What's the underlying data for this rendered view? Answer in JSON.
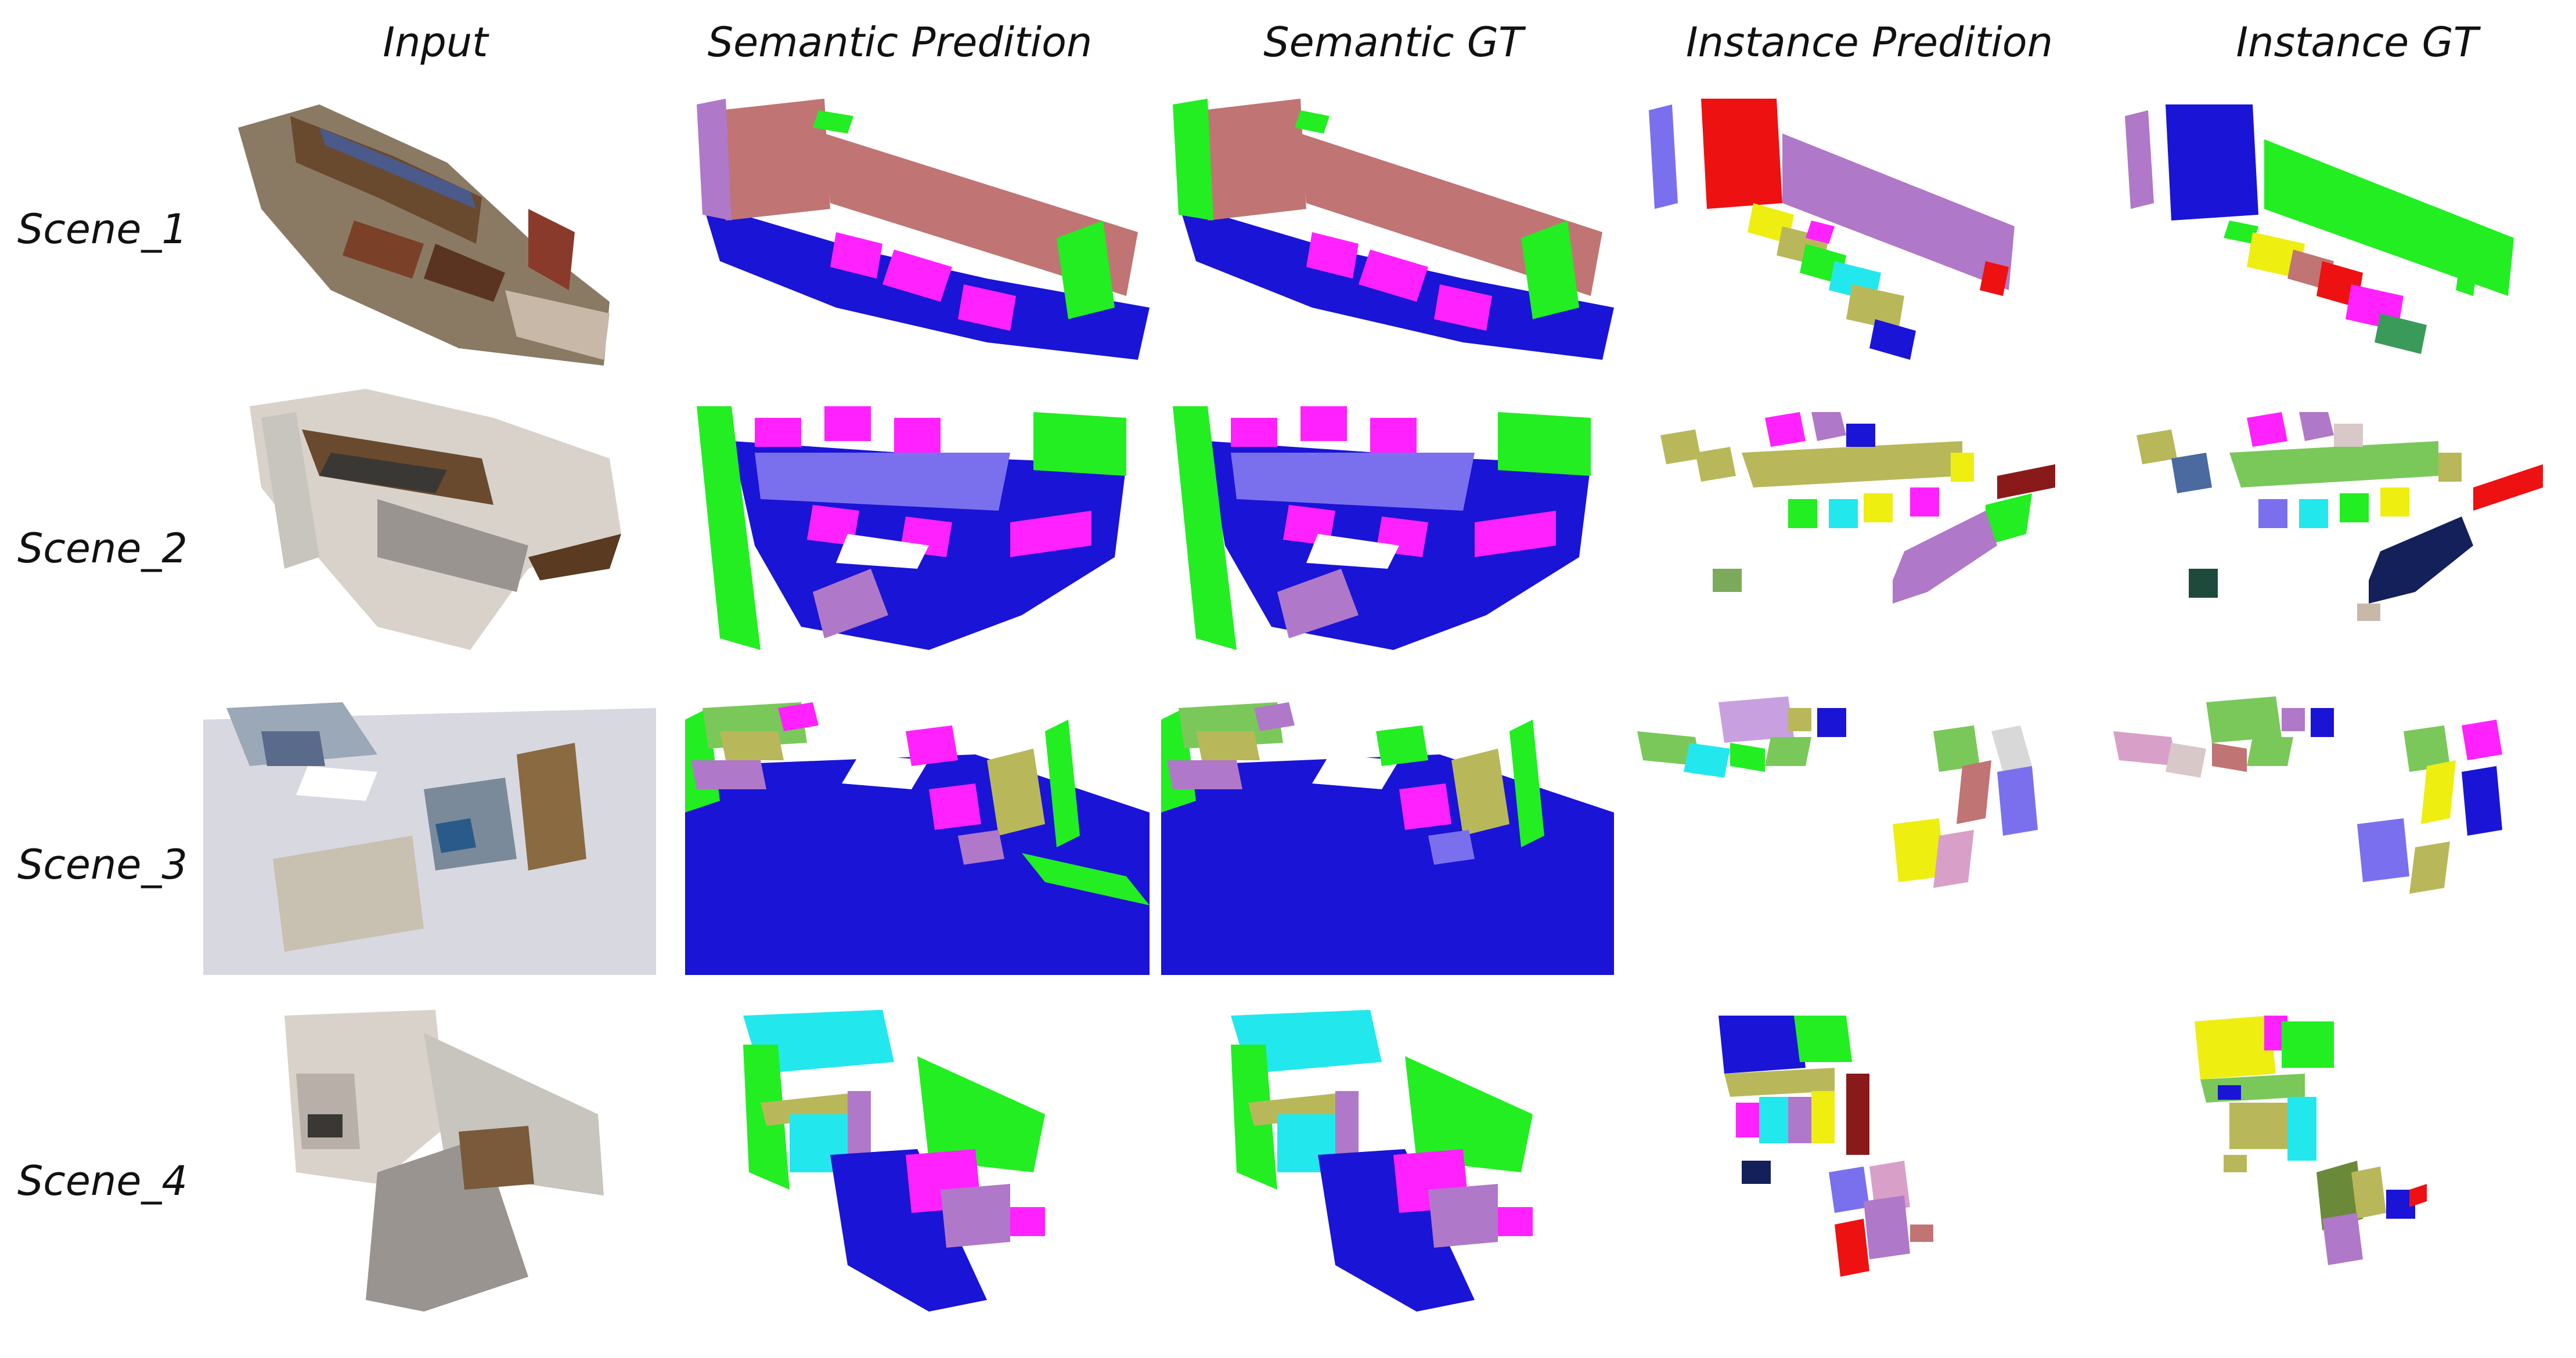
{
  "columns": [
    {
      "key": "input",
      "label": "Input"
    },
    {
      "key": "sem_pred",
      "label": "Semantic Predition"
    },
    {
      "key": "sem_gt",
      "label": "Semantic GT"
    },
    {
      "key": "inst_pred",
      "label": "Instance Predition"
    },
    {
      "key": "inst_gt",
      "label": "Instance GT"
    }
  ],
  "rows": [
    {
      "key": "scene1",
      "label": "Scene_1"
    },
    {
      "key": "scene2",
      "label": "Scene_2"
    },
    {
      "key": "scene3",
      "label": "Scene_3"
    },
    {
      "key": "scene4",
      "label": "Scene_4"
    }
  ],
  "palette": {
    "floor": "#1a14d6",
    "wall": "#22ee22",
    "bookshelf": "#c07474",
    "furniture": "#ff22ff",
    "table": "#7a70ee",
    "cabinet": "#22e8ee",
    "door": "#b078c8",
    "chair_olive": "#b8b85a",
    "inst_red": "#ee1111",
    "inst_yellow": "#eeee11",
    "inst_navy": "#14205a",
    "inst_dark": "#1e4a3c",
    "inst_maroon": "#8a1a1a",
    "photo_brown": "#7a5a3a",
    "photo_gray": "#9a9490",
    "photo_light": "#d8d2ca"
  }
}
